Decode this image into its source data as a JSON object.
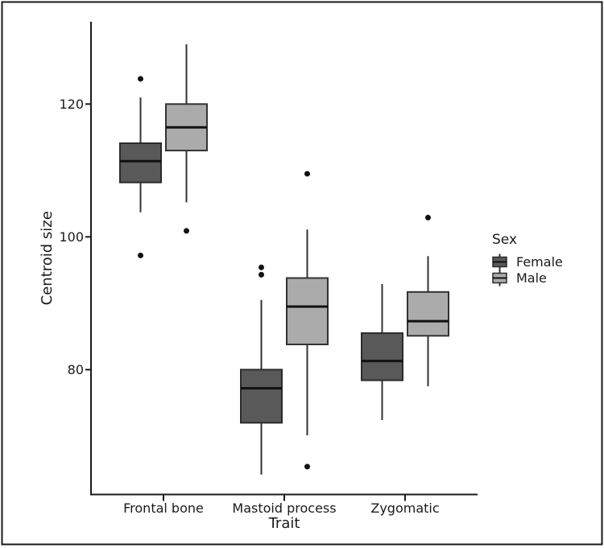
{
  "figure": {
    "background": "#ffffff",
    "border_color": "#1a1a1a"
  },
  "chart_data": {
    "type": "boxplot",
    "title": "",
    "xlabel": "Trait",
    "ylabel": "Centroid size",
    "categories": [
      "Frontal bone",
      "Mastoid process",
      "Zygomatic"
    ],
    "y_ticks": [
      80,
      100,
      120
    ],
    "ylim": [
      61.2,
      132.4
    ],
    "grid": "off",
    "legend": {
      "title": "Sex",
      "position": "right",
      "entries": [
        {
          "label": "Female",
          "fill": "#595959"
        },
        {
          "label": "Male",
          "fill": "#ABABAB"
        }
      ]
    },
    "series": [
      {
        "name": "Female",
        "fill": "#595959",
        "boxes": [
          {
            "category": "Frontal bone",
            "whisker_low": 103.7,
            "q1": 108.2,
            "median": 111.4,
            "q3": 114.1,
            "whisker_high": 121.0,
            "outliers": [
              123.8,
              97.2
            ]
          },
          {
            "category": "Mastoid process",
            "whisker_low": 64.2,
            "q1": 72.0,
            "median": 77.2,
            "q3": 80.0,
            "whisker_high": 90.5,
            "outliers": [
              95.4,
              94.3
            ]
          },
          {
            "category": "Zygomatic",
            "whisker_low": 72.4,
            "q1": 78.4,
            "median": 81.3,
            "q3": 85.5,
            "whisker_high": 92.9,
            "outliers": []
          }
        ]
      },
      {
        "name": "Male",
        "fill": "#ABABAB",
        "boxes": [
          {
            "category": "Frontal bone",
            "whisker_low": 105.2,
            "q1": 113.0,
            "median": 116.5,
            "q3": 120.0,
            "whisker_high": 129.0,
            "outliers": [
              100.9
            ]
          },
          {
            "category": "Mastoid process",
            "whisker_low": 70.1,
            "q1": 83.8,
            "median": 89.5,
            "q3": 93.8,
            "whisker_high": 101.1,
            "outliers": [
              109.5,
              65.4
            ]
          },
          {
            "category": "Zygomatic",
            "whisker_low": 77.5,
            "q1": 85.1,
            "median": 87.3,
            "q3": 91.7,
            "whisker_high": 97.1,
            "outliers": [
              102.9
            ]
          }
        ]
      }
    ],
    "colors": {
      "axis": "#1a1a1a",
      "text": "#1a1a1a",
      "whisker": "#333333",
      "box_border_female": "#2b2b2b",
      "box_border_male": "#333333",
      "median": "#111111",
      "outlier": "#111111"
    }
  }
}
